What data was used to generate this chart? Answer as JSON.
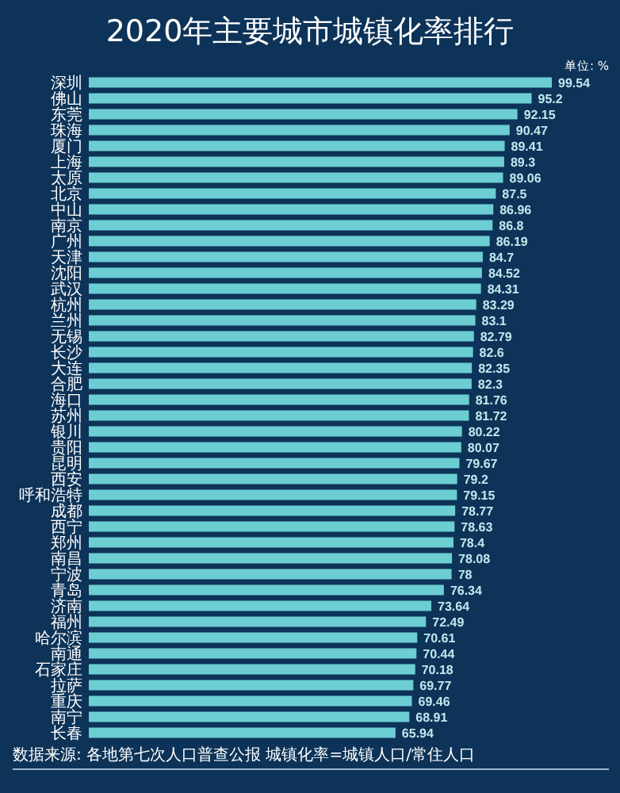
{
  "chart_data": {
    "type": "bar",
    "orientation": "horizontal",
    "title": "2020年主要城市城镇化率排行",
    "annotations": [
      "单位: %",
      "数据来源: 各地第七次人口普查公报  城镇化率=城镇人口/常住人口"
    ],
    "categories": [
      "深圳",
      "佛山",
      "东莞",
      "珠海",
      "厦门",
      "上海",
      "太原",
      "北京",
      "中山",
      "南京",
      "广州",
      "天津",
      "沈阳",
      "武汉",
      "杭州",
      "兰州",
      "无锡",
      "长沙",
      "大连",
      "合肥",
      "海口",
      "苏州",
      "银川",
      "贵阳",
      "昆明",
      "西安",
      "呼和浩特",
      "成都",
      "西宁",
      "郑州",
      "南昌",
      "宁波",
      "青岛",
      "济南",
      "福州",
      "哈尔滨",
      "南通",
      "石家庄",
      "拉萨",
      "重庆",
      "南宁",
      "长春"
    ],
    "values": [
      99.54,
      95.2,
      92.15,
      90.47,
      89.41,
      89.3,
      89.06,
      87.5,
      86.96,
      86.8,
      86.19,
      84.7,
      84.52,
      84.31,
      83.29,
      83.1,
      82.79,
      82.6,
      82.35,
      82.3,
      81.76,
      81.72,
      80.22,
      80.07,
      79.67,
      79.2,
      79.15,
      78.77,
      78.63,
      78.4,
      78.08,
      78,
      76.34,
      73.64,
      72.49,
      70.61,
      70.44,
      70.18,
      69.77,
      69.46,
      68.91,
      65.94
    ],
    "color": "#6ccdd3",
    "data_labels": true,
    "tick_labels": "y"
  }
}
